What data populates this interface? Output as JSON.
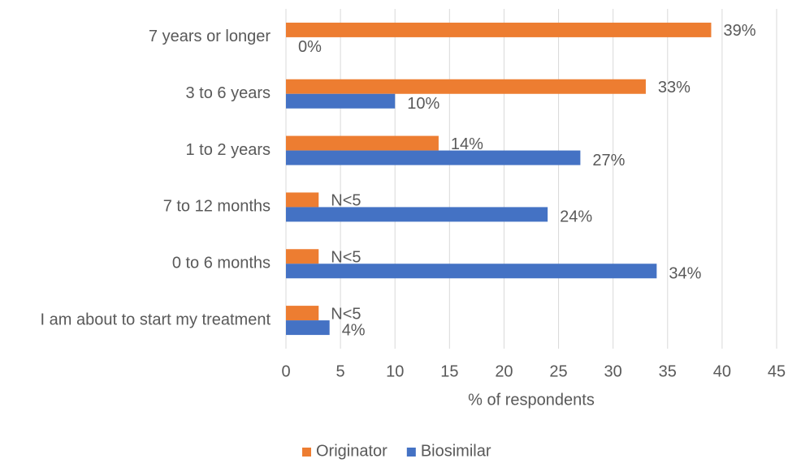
{
  "chart_data": {
    "type": "bar",
    "orientation": "horizontal",
    "categories": [
      "7 years or longer",
      "3 to 6 years",
      "1 to 2 years",
      "7 to 12 months",
      "0 to 6 months",
      "I am about to start my treatment"
    ],
    "series": [
      {
        "name": "Originator",
        "color": "#ed7d31",
        "values": [
          39,
          33,
          14,
          3,
          3,
          3
        ],
        "value_labels": [
          "39%",
          "33%",
          "14%",
          "N<5",
          "N<5",
          "N<5"
        ]
      },
      {
        "name": "Biosimilar",
        "color": "#4472c4",
        "values": [
          0,
          10,
          27,
          24,
          34,
          4
        ],
        "value_labels": [
          "0%",
          "10%",
          "27%",
          "24%",
          "34%",
          "4%"
        ]
      }
    ],
    "x_label": "% of respondents",
    "xlim": [
      0,
      45
    ],
    "xticks": [
      0,
      5,
      10,
      15,
      20,
      25,
      30,
      35,
      40,
      45
    ],
    "grid": true,
    "legend": "bottom"
  }
}
